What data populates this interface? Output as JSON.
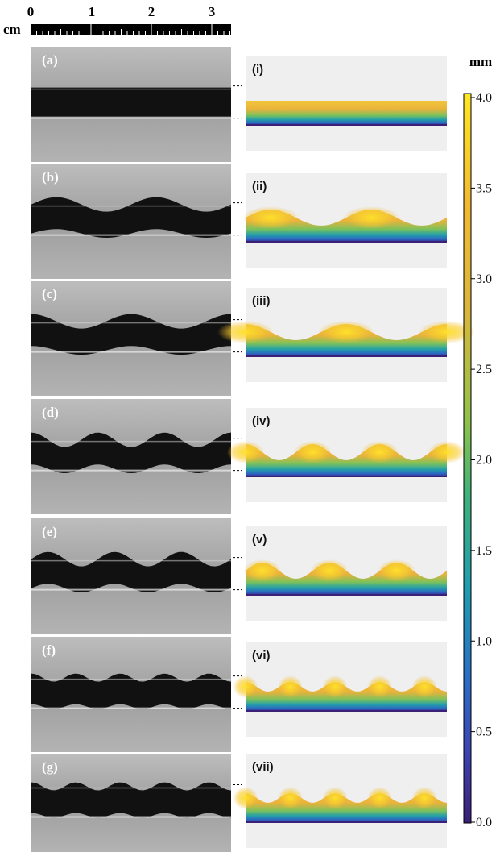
{
  "ruler": {
    "unit": "cm",
    "labels": [
      "0",
      "1",
      "2",
      "3"
    ]
  },
  "panels": [
    {
      "photo_label": "(a)",
      "sim_label": "(i)",
      "waves": 0,
      "phase": 0
    },
    {
      "photo_label": "(b)",
      "sim_label": "(ii)",
      "waves": 2,
      "phase": 0.25
    },
    {
      "photo_label": "(c)",
      "sim_label": "(iii)",
      "waves": 2,
      "phase": 0.0
    },
    {
      "photo_label": "(d)",
      "sim_label": "(iv)",
      "waves": 3,
      "phase": 0.0
    },
    {
      "photo_label": "(e)",
      "sim_label": "(v)",
      "waves": 3,
      "phase": 0.25
    },
    {
      "photo_label": "(f)",
      "sim_label": "(vi)",
      "waves": 4.5,
      "phase": 0.0
    },
    {
      "photo_label": "(g)",
      "sim_label": "(vii)",
      "waves": 4.5,
      "phase": 0.0
    }
  ],
  "colorbar": {
    "unit": "mm",
    "ticks": [
      "4.0",
      "3.5",
      "3.0",
      "2.5",
      "2.0",
      "1.5",
      "1.0",
      "0.5",
      "0.0"
    ],
    "colors": [
      "#fde725",
      "#f5c237",
      "#e6b23a",
      "#a8c53f",
      "#5ec269",
      "#21a5a6",
      "#2a78c2",
      "#3b4ab8",
      "#3a2076"
    ]
  }
}
